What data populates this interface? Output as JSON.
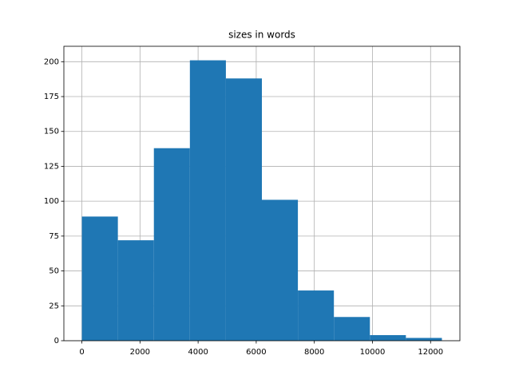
{
  "chart_data": {
    "type": "histogram",
    "title": "sizes in words",
    "bins": [
      0,
      1239,
      2478,
      3717,
      4956,
      6195,
      7434,
      8673,
      9912,
      11151,
      12390
    ],
    "values": [
      89,
      72,
      138,
      201,
      188,
      101,
      36,
      17,
      4,
      2
    ],
    "color": "#1f77b4",
    "xlim": [
      -619.5,
      13009.5
    ],
    "xticks": [
      0,
      2000,
      4000,
      6000,
      8000,
      10000,
      12000
    ],
    "ylim": [
      0,
      211.05
    ],
    "yticks": [
      0,
      25,
      50,
      75,
      100,
      125,
      150,
      175,
      200
    ],
    "grid": true
  }
}
